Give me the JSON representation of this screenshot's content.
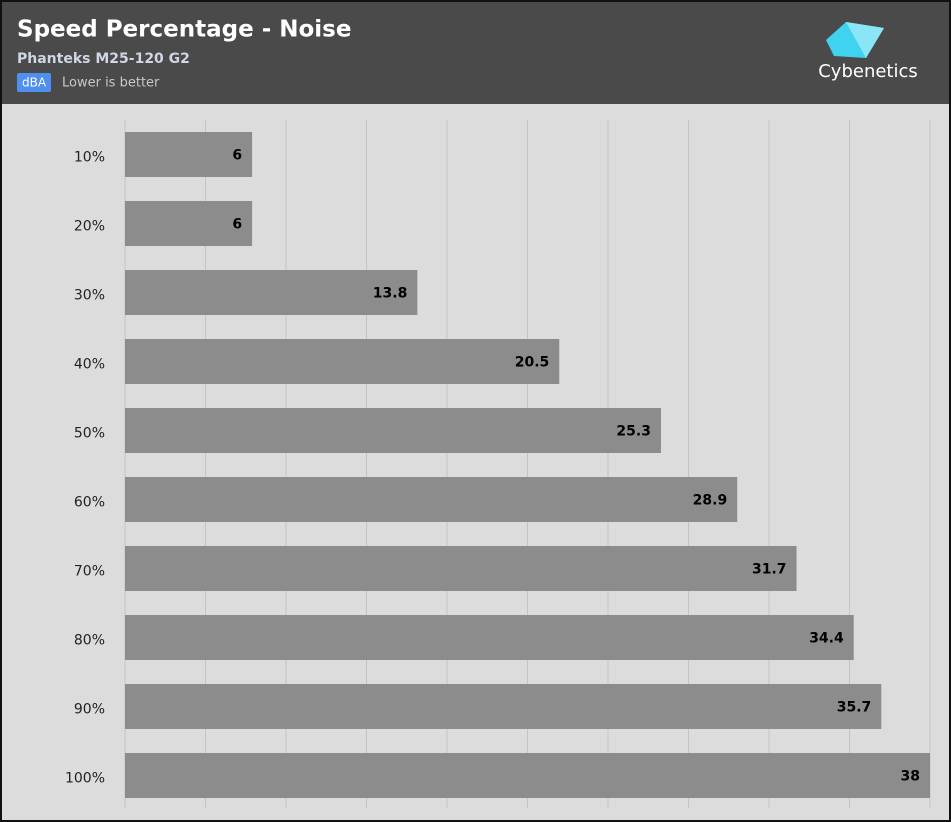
{
  "chart_data": {
    "type": "bar",
    "orientation": "horizontal",
    "title": "Speed Percentage - Noise",
    "subtitle": "Phanteks M25-120 G2",
    "unit": "dBA",
    "note": "Lower is better",
    "brand": "Cybenetics",
    "categories": [
      "10%",
      "20%",
      "30%",
      "40%",
      "50%",
      "60%",
      "70%",
      "80%",
      "90%",
      "100%"
    ],
    "values": [
      6,
      6,
      13.8,
      20.5,
      25.3,
      28.9,
      31.7,
      34.4,
      35.7,
      38
    ],
    "color": "#8c8c8c",
    "xlim": [
      0,
      38
    ],
    "xticks": [
      0,
      3.8,
      7.6,
      11.4,
      15.2,
      19,
      22.8,
      26.6,
      30.4,
      34.2,
      38
    ],
    "grid": true
  }
}
